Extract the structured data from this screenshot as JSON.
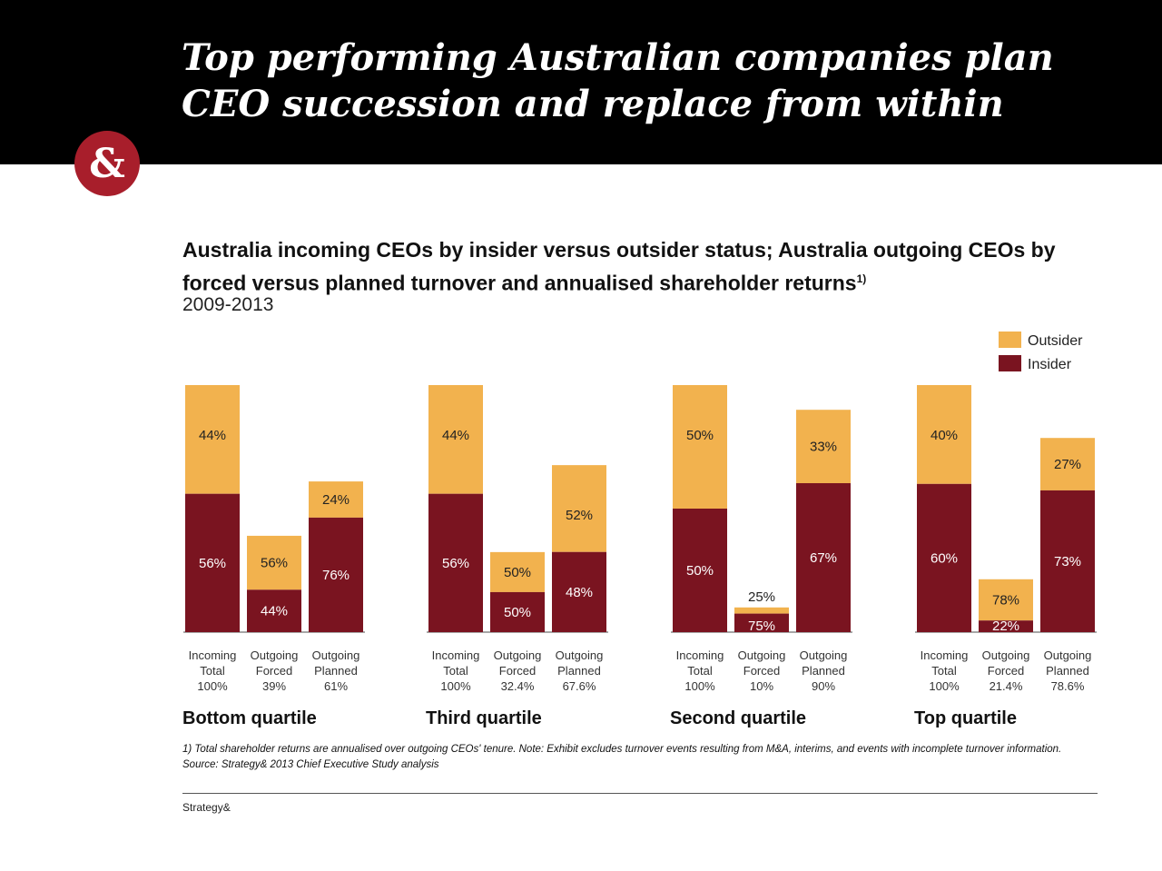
{
  "header": {
    "title_line1": "Top performing Australian companies plan",
    "title_line2": "CEO succession and replace from within",
    "logo_text": "&"
  },
  "chart_title": "Australia incoming CEOs by insider versus outsider status; Australia outgoing CEOs by forced versus planned turnover and annualised shareholder returns",
  "chart_title_sup": "1)",
  "chart_subtitle": "2009-2013",
  "footnote": "1) Total shareholder returns are annualised over outgoing CEOs' tenure.  Note: Exhibit excludes turnover events resulting from M&A, interims, and events with incomplete turnover information.  Source: Strategy& 2013 Chief Executive Study analysis",
  "brand": "Strategy&",
  "colors": {
    "outsider": "#f2b24e",
    "insider": "#7a1420",
    "header_bg": "#000000",
    "logo": "#a81e2b"
  },
  "chart_data": {
    "type": "bar",
    "stacked": true,
    "legend": [
      {
        "name": "Outsider",
        "color": "#f2b24e"
      },
      {
        "name": "Insider",
        "color": "#7a1420"
      }
    ],
    "legend_position": "top-right",
    "groups": [
      {
        "name": "Bottom quartile",
        "bars": [
          {
            "label": [
              "Incoming",
              "Total",
              "100%"
            ],
            "total": 100,
            "insider": 56,
            "outsider": 44,
            "insider_label": "56%",
            "outsider_label": "44%"
          },
          {
            "label": [
              "Outgoing",
              "Forced",
              "39%"
            ],
            "total": 39,
            "insider": 44,
            "outsider": 56,
            "insider_label": "44%",
            "outsider_label": "56%"
          },
          {
            "label": [
              "Outgoing",
              "Planned",
              "61%"
            ],
            "total": 61,
            "insider": 76,
            "outsider": 24,
            "insider_label": "76%",
            "outsider_label": "24%"
          }
        ]
      },
      {
        "name": "Third quartile",
        "bars": [
          {
            "label": [
              "Incoming",
              "Total",
              "100%"
            ],
            "total": 100,
            "insider": 56,
            "outsider": 44,
            "insider_label": "56%",
            "outsider_label": "44%"
          },
          {
            "label": [
              "Outgoing",
              "Forced",
              "32.4%"
            ],
            "total": 32.4,
            "insider": 50,
            "outsider": 50,
            "insider_label": "50%",
            "outsider_label": "50%"
          },
          {
            "label": [
              "Outgoing",
              "Planned",
              "67.6%"
            ],
            "total": 67.6,
            "insider": 48,
            "outsider": 52,
            "insider_label": "48%",
            "outsider_label": "52%"
          }
        ]
      },
      {
        "name": "Second quartile",
        "bars": [
          {
            "label": [
              "Incoming",
              "Total",
              "100%"
            ],
            "total": 100,
            "insider": 50,
            "outsider": 50,
            "insider_label": "50%",
            "outsider_label": "50%"
          },
          {
            "label": [
              "Outgoing",
              "Forced",
              "10%"
            ],
            "total": 10,
            "insider": 75,
            "outsider": 25,
            "insider_label": "75%",
            "outsider_label": "25%"
          },
          {
            "label": [
              "Outgoing",
              "Planned",
              "90%"
            ],
            "total": 90,
            "insider": 67,
            "outsider": 33,
            "insider_label": "67%",
            "outsider_label": "33%"
          }
        ]
      },
      {
        "name": "Top quartile",
        "bars": [
          {
            "label": [
              "Incoming",
              "Total",
              "100%"
            ],
            "total": 100,
            "insider": 60,
            "outsider": 40,
            "insider_label": "60%",
            "outsider_label": "40%"
          },
          {
            "label": [
              "Outgoing",
              "Forced",
              "21.4%"
            ],
            "total": 21.4,
            "insider": 22,
            "outsider": 78,
            "insider_label": "22%",
            "outsider_label": "78%"
          },
          {
            "label": [
              "Outgoing",
              "Planned",
              "78.6%"
            ],
            "total": 78.6,
            "insider": 73,
            "outsider": 27,
            "insider_label": "73%",
            "outsider_label": "27%"
          }
        ]
      }
    ]
  }
}
